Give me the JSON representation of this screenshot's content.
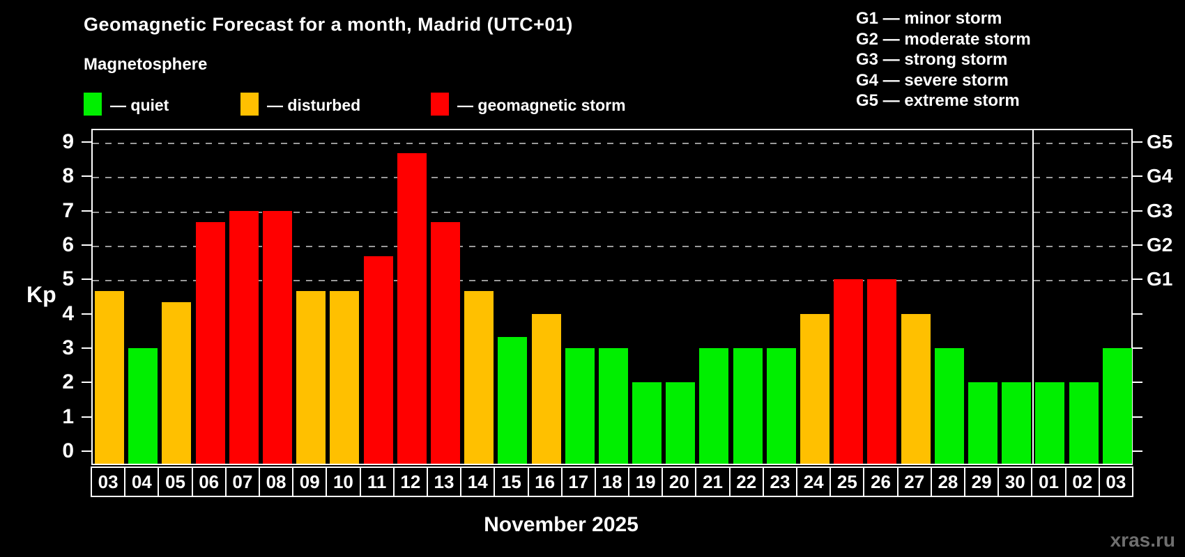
{
  "header": {
    "title": "Geomagnetic Forecast for a month, Madrid (UTC+01)",
    "subtitle": "Magnetosphere"
  },
  "legend": {
    "quiet": "— quiet",
    "disturbed": "— disturbed",
    "storm": "— geomagnetic storm"
  },
  "g_legend": [
    "G1 — minor storm",
    "G2 — moderate storm",
    "G3 — strong storm",
    "G4 — severe storm",
    "G5 — extreme storm"
  ],
  "axis": {
    "y_label": "Kp",
    "y_ticks": [
      0,
      1,
      2,
      3,
      4,
      5,
      6,
      7,
      8,
      9
    ],
    "right_ticks": [
      "G1",
      "G2",
      "G3",
      "G4",
      "G5"
    ],
    "x_title": "November 2025"
  },
  "watermark": "xras.ru",
  "colors": {
    "quiet": "#00ef00",
    "disturbed": "#ffc000",
    "storm": "#ff0000",
    "grid": "#9a9a9a",
    "frame": "#ffffff",
    "background": "#000000"
  },
  "chart_data": {
    "type": "bar",
    "title": "Geomagnetic Forecast for a month, Madrid (UTC+01)",
    "xlabel": "November 2025",
    "ylabel": "Kp",
    "ylim": [
      -0.4,
      9.4
    ],
    "gridlines_at": [
      5,
      6,
      7,
      8,
      9
    ],
    "grid": "dashed horizontal at storm levels G1–G5",
    "legend_position": "top",
    "categories": [
      "03",
      "04",
      "05",
      "06",
      "07",
      "08",
      "09",
      "10",
      "11",
      "12",
      "13",
      "14",
      "15",
      "16",
      "17",
      "18",
      "19",
      "20",
      "21",
      "22",
      "23",
      "24",
      "25",
      "26",
      "27",
      "28",
      "29",
      "30",
      "01",
      "02",
      "03"
    ],
    "values": [
      4.67,
      3.0,
      4.33,
      6.67,
      7.0,
      7.0,
      4.67,
      4.67,
      5.67,
      8.67,
      6.67,
      4.67,
      3.33,
      4.0,
      3.0,
      3.0,
      2.0,
      2.0,
      3.0,
      3.0,
      3.0,
      4.0,
      5.0,
      5.0,
      4.0,
      3.0,
      2.0,
      2.0,
      2.0,
      2.0,
      3.0
    ],
    "statuses": [
      "disturbed",
      "quiet",
      "disturbed",
      "storm",
      "storm",
      "storm",
      "disturbed",
      "disturbed",
      "storm",
      "storm",
      "storm",
      "disturbed",
      "quiet",
      "disturbed",
      "quiet",
      "quiet",
      "quiet",
      "quiet",
      "quiet",
      "quiet",
      "quiet",
      "disturbed",
      "storm",
      "storm",
      "disturbed",
      "quiet",
      "quiet",
      "quiet",
      "quiet",
      "quiet",
      "quiet"
    ],
    "month_separator_after_index": 27
  }
}
